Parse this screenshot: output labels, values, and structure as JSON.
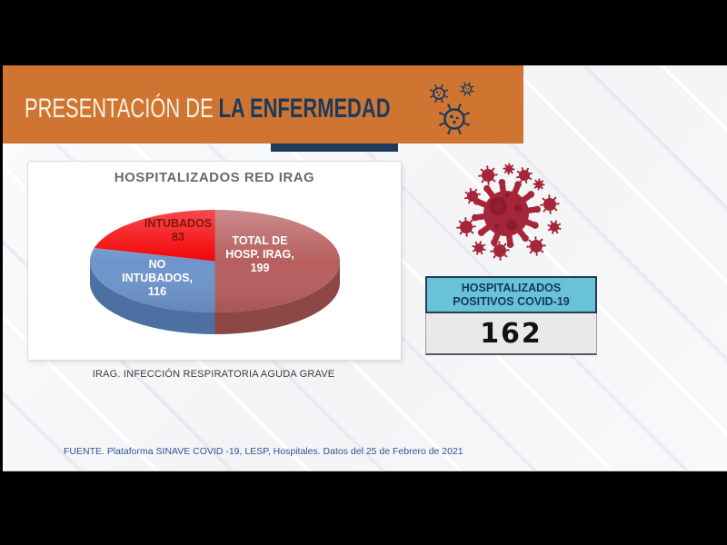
{
  "palette": {
    "banner_orange": "#cf7531",
    "navy": "#1c3a5c",
    "teal": "#68c2d8",
    "crimson": "#a62639",
    "crimson_dark": "#8c1b2f",
    "pie_red": "#f20507",
    "pie_blue": "#6e95cb",
    "pie_maroon": "#b75f5f"
  },
  "header": {
    "title_regular": "PRESENTACIÓN DE",
    "title_accent": "LA ENFERMEDAD",
    "icons": [
      "virus-outline-icon",
      "virus-outline-icon",
      "virus-outline-icon"
    ]
  },
  "chart_data": {
    "type": "pie",
    "is_3d": true,
    "title": "HOSPITALIZADOS RED IRAG",
    "start_angle_deg": 90,
    "direction": "clockwise",
    "legend": "none",
    "slices": [
      {
        "name": "TOTAL DE HOSP. IRAG",
        "value": 199,
        "color": "#b75f5f",
        "side_color": "#8d4747",
        "label_lines": [
          "TOTAL DE",
          "HOSP. IRAG,",
          "199"
        ],
        "label_color": "#ffffff"
      },
      {
        "name": "NO INTUBADOS",
        "value": 116,
        "color": "#6e95cb",
        "side_color": "#4b70a1",
        "label_lines": [
          "NO",
          "INTUBADOS,",
          "116"
        ],
        "label_color": "#ffffff"
      },
      {
        "name": "INTUBADOS",
        "value": 83,
        "color": "#f20507",
        "side_color": "#b90405",
        "label_lines": [
          "INTUBADOS",
          "83"
        ],
        "label_color": "#871410"
      }
    ],
    "caption": "IRAG. INFECCIÓN RESPIRATORIA AGUDA GRAVE"
  },
  "illustration": {
    "icon": "virus-icon"
  },
  "stats_panel": {
    "label_lines": [
      "HOSPITALIZADOS",
      "POSITIVOS COVID-19"
    ],
    "value": "162"
  },
  "footer": {
    "source": "FUENTE. Plataforma SINAVE COVID -19, LESP, Hospitales. Datos del 25 de Febrero de 2021"
  }
}
